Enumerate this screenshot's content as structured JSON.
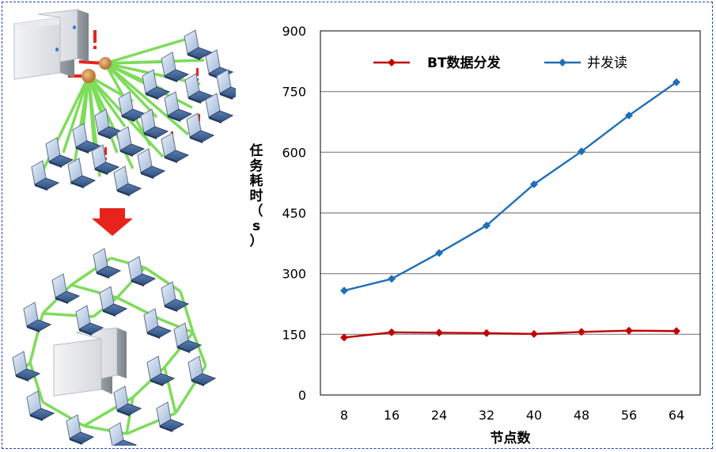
{
  "chart_data": {
    "type": "line",
    "categories": [
      "8",
      "16",
      "24",
      "32",
      "40",
      "48",
      "56",
      "64"
    ],
    "series": [
      {
        "name": "BT数据分发",
        "color": "#c00000",
        "values": [
          142,
          155,
          154,
          153,
          151,
          156,
          159,
          158
        ]
      },
      {
        "name": "并发读",
        "color": "#1f6fb8",
        "values": [
          258,
          287,
          351,
          419,
          521,
          602,
          691,
          773
        ]
      }
    ],
    "title": "",
    "xlabel": "节点数",
    "ylabel": "任务耗时（s）",
    "ylim": [
      0,
      900
    ],
    "yticks": [
      0,
      150,
      300,
      450,
      600,
      750,
      900
    ],
    "grid": true,
    "legend_position": "top"
  },
  "illustration": {
    "top_panel": "server connected directly to many client computers",
    "arrow_color": "#e8231b",
    "bottom_panel": "server with client computers connected to each other in a mesh",
    "link_color": "#7ddc5a"
  }
}
